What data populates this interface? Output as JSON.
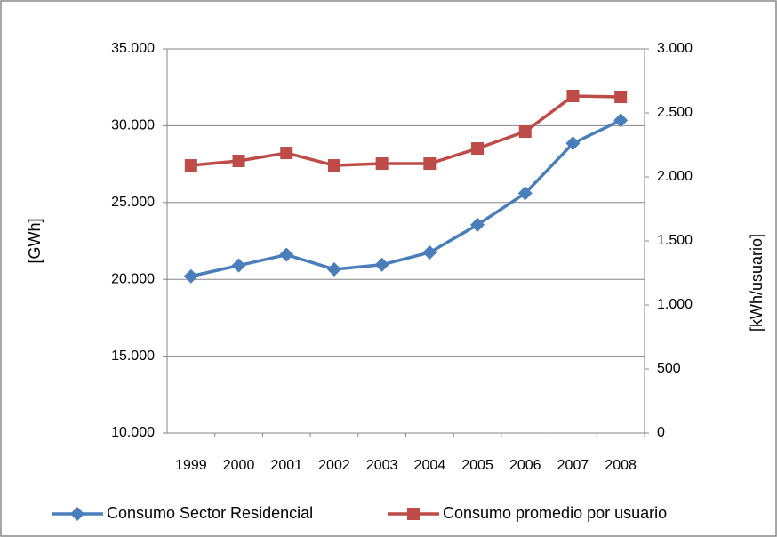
{
  "chart_data": {
    "type": "line",
    "categories": [
      "1999",
      "2000",
      "2001",
      "2002",
      "2003",
      "2004",
      "2005",
      "2006",
      "2007",
      "2008"
    ],
    "series": [
      {
        "name": "Consumo Sector Residencial",
        "color": "#4a7ebb",
        "values": [
          20200,
          20900,
          21600,
          20650,
          20950,
          21750,
          23550,
          25600,
          28850,
          30350
        ]
      },
      {
        "name": "Consumo promedio por usuario",
        "color": "#be4b48",
        "axis": "y2",
        "values": [
          2090,
          2125,
          2187,
          2090,
          2104,
          2104,
          2222,
          2354,
          2632,
          2625
        ]
      }
    ],
    "y_label": "[GWh]",
    "y2_label": "[kWh/usuario]",
    "ylim": [
      10000,
      35000
    ],
    "yticks": [
      {
        "value": 10000,
        "label": "10.000"
      },
      {
        "value": 15000,
        "label": "15.000"
      },
      {
        "value": 20000,
        "label": "20.000"
      },
      {
        "value": 25000,
        "label": "25.000"
      },
      {
        "value": 30000,
        "label": "30.000"
      },
      {
        "value": 35000,
        "label": "35.000"
      }
    ],
    "y2lim": [
      0,
      3000
    ],
    "y2ticks": [
      0,
      500,
      {
        "value": 1000,
        "label": "1.000"
      },
      {
        "value": 1500,
        "label": "1.500"
      },
      {
        "value": 2000,
        "label": "2.000"
      },
      {
        "value": 2500,
        "label": "2.500"
      },
      {
        "value": 3000,
        "label": "3.000"
      }
    ],
    "grid": true,
    "legend": "bottom"
  }
}
